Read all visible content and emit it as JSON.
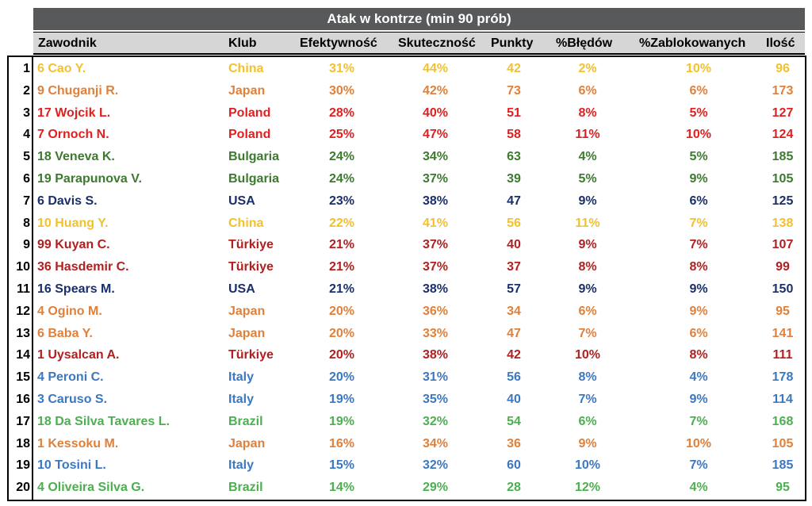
{
  "chart_data": {
    "type": "table",
    "title": "Atak w kontrze (min 90 prób)",
    "columns": [
      "Zawodnik",
      "Klub",
      "Efektywność",
      "Skuteczność",
      "Punkty",
      "%Błędów",
      "%Zablokowanych",
      "Ilość"
    ],
    "rows": [
      {
        "rank": "1",
        "player": "6 Cao Y.",
        "club": "China",
        "efektywnosc": "31%",
        "skutecznosc": "44%",
        "punkty": "42",
        "bledow": "2%",
        "zablokowanych": "10%",
        "ilosc": "96"
      },
      {
        "rank": "2",
        "player": "9 Chuganji R.",
        "club": "Japan",
        "efektywnosc": "30%",
        "skutecznosc": "42%",
        "punkty": "73",
        "bledow": "6%",
        "zablokowanych": "6%",
        "ilosc": "173"
      },
      {
        "rank": "3",
        "player": "17 Wojcik L.",
        "club": "Poland",
        "efektywnosc": "28%",
        "skutecznosc": "40%",
        "punkty": "51",
        "bledow": "8%",
        "zablokowanych": "5%",
        "ilosc": "127"
      },
      {
        "rank": "4",
        "player": "7 Ornoch N.",
        "club": "Poland",
        "efektywnosc": "25%",
        "skutecznosc": "47%",
        "punkty": "58",
        "bledow": "11%",
        "zablokowanych": "10%",
        "ilosc": "124"
      },
      {
        "rank": "5",
        "player": "18 Veneva K.",
        "club": "Bulgaria",
        "efektywnosc": "24%",
        "skutecznosc": "34%",
        "punkty": "63",
        "bledow": "4%",
        "zablokowanych": "5%",
        "ilosc": "185"
      },
      {
        "rank": "6",
        "player": "19 Parapunova V.",
        "club": "Bulgaria",
        "efektywnosc": "24%",
        "skutecznosc": "37%",
        "punkty": "39",
        "bledow": "5%",
        "zablokowanych": "9%",
        "ilosc": "105"
      },
      {
        "rank": "7",
        "player": "6 Davis S.",
        "club": "USA",
        "efektywnosc": "23%",
        "skutecznosc": "38%",
        "punkty": "47",
        "bledow": "9%",
        "zablokowanych": "6%",
        "ilosc": "125"
      },
      {
        "rank": "8",
        "player": "10 Huang Y.",
        "club": "China",
        "efektywnosc": "22%",
        "skutecznosc": "41%",
        "punkty": "56",
        "bledow": "11%",
        "zablokowanych": "7%",
        "ilosc": "138"
      },
      {
        "rank": "9",
        "player": "99 Kuyan C.",
        "club": "Türkiye",
        "efektywnosc": "21%",
        "skutecznosc": "37%",
        "punkty": "40",
        "bledow": "9%",
        "zablokowanych": "7%",
        "ilosc": "107"
      },
      {
        "rank": "10",
        "player": "36 Hasdemir C.",
        "club": "Türkiye",
        "efektywnosc": "21%",
        "skutecznosc": "37%",
        "punkty": "37",
        "bledow": "8%",
        "zablokowanych": "8%",
        "ilosc": "99"
      },
      {
        "rank": "11",
        "player": "16 Spears M.",
        "club": "USA",
        "efektywnosc": "21%",
        "skutecznosc": "38%",
        "punkty": "57",
        "bledow": "9%",
        "zablokowanych": "9%",
        "ilosc": "150"
      },
      {
        "rank": "12",
        "player": "4 Ogino M.",
        "club": "Japan",
        "efektywnosc": "20%",
        "skutecznosc": "36%",
        "punkty": "34",
        "bledow": "6%",
        "zablokowanych": "9%",
        "ilosc": "95"
      },
      {
        "rank": "13",
        "player": "6 Baba Y.",
        "club": "Japan",
        "efektywnosc": "20%",
        "skutecznosc": "33%",
        "punkty": "47",
        "bledow": "7%",
        "zablokowanych": "6%",
        "ilosc": "141"
      },
      {
        "rank": "14",
        "player": "1 Uysalcan A.",
        "club": "Türkiye",
        "efektywnosc": "20%",
        "skutecznosc": "38%",
        "punkty": "42",
        "bledow": "10%",
        "zablokowanych": "8%",
        "ilosc": "111"
      },
      {
        "rank": "15",
        "player": "4 Peroni C.",
        "club": "Italy",
        "efektywnosc": "20%",
        "skutecznosc": "31%",
        "punkty": "56",
        "bledow": "8%",
        "zablokowanych": "4%",
        "ilosc": "178"
      },
      {
        "rank": "16",
        "player": "3 Caruso S.",
        "club": "Italy",
        "efektywnosc": "19%",
        "skutecznosc": "35%",
        "punkty": "40",
        "bledow": "7%",
        "zablokowanych": "9%",
        "ilosc": "114"
      },
      {
        "rank": "17",
        "player": "18 Da Silva Tavares L.",
        "club": "Brazil",
        "efektywnosc": "19%",
        "skutecznosc": "32%",
        "punkty": "54",
        "bledow": "6%",
        "zablokowanych": "7%",
        "ilosc": "168"
      },
      {
        "rank": "18",
        "player": "1 Kessoku M.",
        "club": "Japan",
        "efektywnosc": "16%",
        "skutecznosc": "34%",
        "punkty": "36",
        "bledow": "9%",
        "zablokowanych": "10%",
        "ilosc": "105"
      },
      {
        "rank": "19",
        "player": "10 Tosini L.",
        "club": "Italy",
        "efektywnosc": "15%",
        "skutecznosc": "32%",
        "punkty": "60",
        "bledow": "10%",
        "zablokowanych": "7%",
        "ilosc": "185"
      },
      {
        "rank": "20",
        "player": "4 Oliveira Silva G.",
        "club": "Brazil",
        "efektywnosc": "14%",
        "skutecznosc": "29%",
        "punkty": "28",
        "bledow": "12%",
        "zablokowanych": "4%",
        "ilosc": "95"
      }
    ]
  },
  "colors": {
    "title_bg": "#58595b",
    "header_bg": "#d6d6d6",
    "clubs": {
      "China": "#f2c12e",
      "Japan": "#e0803a",
      "Poland": "#e02020",
      "Bulgaria": "#3c7a2e",
      "USA": "#1a2f6b",
      "Türkiye": "#b21f1f",
      "Italy": "#3b78c2",
      "Brazil": "#4caf50"
    }
  }
}
